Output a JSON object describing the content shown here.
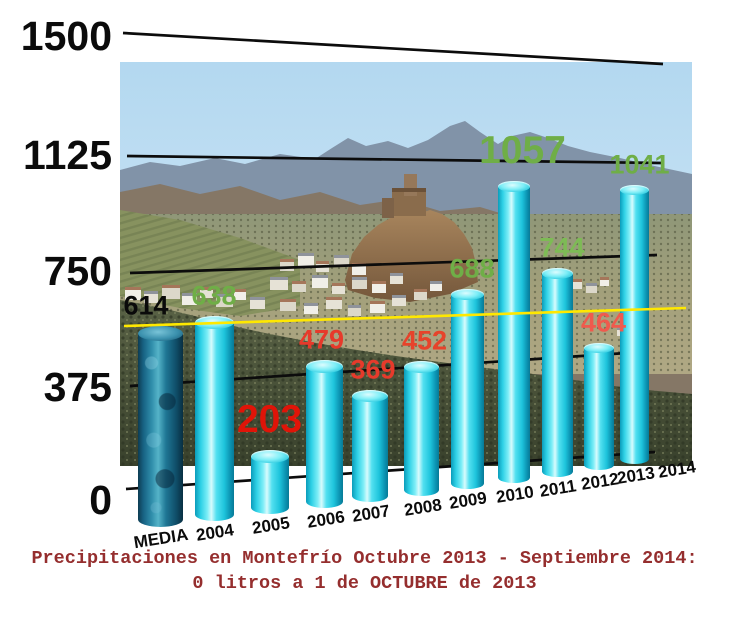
{
  "chart_data": {
    "type": "bar",
    "title": "Precipitaciones en Montefrío Octubre 2013 - Septiembre 2014: 0 litros a 1 de OCTUBRE de 2013",
    "background_description": "photo of Montefrío hillside village with castle rock, mountains and olive groves",
    "categories": [
      "MEDIA",
      "2004",
      "2005",
      "2006",
      "2007",
      "2008",
      "2009",
      "2010",
      "2011",
      "2012",
      "2013",
      "2014"
    ],
    "values": [
      614,
      638,
      203,
      479,
      369,
      452,
      688,
      1057,
      744,
      464,
      1041,
      0
    ],
    "ylim": [
      0,
      1500
    ],
    "yticks": [
      "1500",
      "1125",
      "750",
      "375",
      "0"
    ],
    "grid": "horizontal, hand-drawn perspective lines",
    "legend_position": "none",
    "average_line": {
      "value": 614,
      "color": "#ffe800"
    },
    "points": [
      {
        "category": "MEDIA",
        "value": 614,
        "label": "614",
        "label_color": "#0a0a0a",
        "size": "normal",
        "bar_style": "dark"
      },
      {
        "category": "2004",
        "value": 638,
        "label": "638",
        "label_color": "#6fae47",
        "size": "normal",
        "bar_style": "cyan"
      },
      {
        "category": "2005",
        "value": 203,
        "label": "203",
        "label_color": "#e01408",
        "size": "big",
        "bar_style": "cyan"
      },
      {
        "category": "2006",
        "value": 479,
        "label": "479",
        "label_color": "#e73a2b",
        "size": "normal",
        "bar_style": "cyan"
      },
      {
        "category": "2007",
        "value": 369,
        "label": "369",
        "label_color": "#e73a2b",
        "size": "normal",
        "bar_style": "cyan"
      },
      {
        "category": "2008",
        "value": 452,
        "label": "452",
        "label_color": "#e7432b",
        "size": "normal",
        "bar_style": "cyan"
      },
      {
        "category": "2009",
        "value": 688,
        "label": "688",
        "label_color": "#6fae47",
        "size": "normal",
        "bar_style": "cyan"
      },
      {
        "category": "2010",
        "value": 1057,
        "label": "1057",
        "label_color": "#6fae47",
        "size": "big",
        "bar_style": "cyan"
      },
      {
        "category": "2011",
        "value": 744,
        "label": "744",
        "label_color": "#7dbb55",
        "size": "normal",
        "bar_style": "cyan"
      },
      {
        "category": "2012",
        "value": 464,
        "label": "464",
        "label_color": "#ef5a4d",
        "size": "normal",
        "bar_style": "cyan"
      },
      {
        "category": "2013",
        "value": 1041,
        "label": "1041",
        "label_color": "#6fae47",
        "size": "normal",
        "bar_style": "cyan"
      },
      {
        "category": "2014",
        "value": 0,
        "label": "",
        "label_color": "",
        "size": "none",
        "bar_style": "none"
      }
    ]
  },
  "caption": {
    "line1": "Precipitaciones en Montefrío Octubre 2013 - Septiembre 2014:",
    "line2": "0 litros a 1 de OCTUBRE de 2013",
    "color": "#952e2e"
  },
  "colors": {
    "bar_cyan": "#2fd1e6",
    "bar_media_dark": "#176283",
    "grid_black": "#0c0c0c",
    "average_yellow": "#ffe800",
    "green_label": "#6fae47",
    "red_label": "#e01408"
  }
}
